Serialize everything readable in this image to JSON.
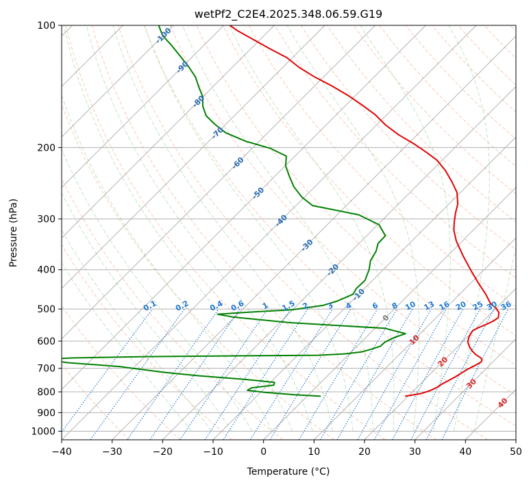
{
  "chart_data": {
    "type": "line",
    "subtype": "skew-t",
    "title": "wetPf2_C2E4.2025.348.06.59.G19",
    "xlabel": "Temperature (°C)",
    "ylabel": "Pressure (hPa)",
    "xlim": [
      -40,
      50
    ],
    "ylim": [
      1050,
      100
    ],
    "y_scale": "log",
    "x_ticks": [
      -40,
      -30,
      -20,
      -10,
      0,
      10,
      20,
      30,
      40,
      50
    ],
    "x_tick_labels": [
      "−40",
      "−30",
      "−20",
      "−10",
      "0",
      "10",
      "20",
      "30",
      "40",
      "50"
    ],
    "y_ticks": [
      100,
      200,
      300,
      400,
      500,
      600,
      700,
      800,
      900,
      1000
    ],
    "y_tick_labels": [
      "100",
      "200",
      "300",
      "400",
      "500",
      "600",
      "700",
      "800",
      "900",
      "1000"
    ],
    "grid": true,
    "colors": {
      "temperature": "#e00000",
      "dewpoint": "#008000",
      "isotherm": "#a9a9a9",
      "dry_adiabat": "#f4a582",
      "moist_adiabat": "#a6d8a6",
      "mixing_ratio": "#1f77d0",
      "freezing": "#d2b48c"
    },
    "series": [
      {
        "name": "Temperature",
        "color": "#e00000",
        "points": [
          [
            19.4,
            820
          ],
          [
            22,
            808
          ],
          [
            23.2,
            795
          ],
          [
            24,
            780
          ],
          [
            24.3,
            765
          ],
          [
            25,
            748
          ],
          [
            25.6,
            733
          ],
          [
            26,
            718
          ],
          [
            26.4,
            705
          ],
          [
            27.2,
            688
          ],
          [
            27.7,
            675
          ],
          [
            27.4,
            666
          ],
          [
            26.6,
            658
          ],
          [
            25.2,
            648
          ],
          [
            23.8,
            635
          ],
          [
            22.4,
            620
          ],
          [
            21.1,
            603
          ],
          [
            20.4,
            588
          ],
          [
            20,
            575
          ],
          [
            19.8,
            565
          ],
          [
            20.4,
            555
          ],
          [
            21.3,
            545
          ],
          [
            22,
            535
          ],
          [
            22.3,
            525
          ],
          [
            21.4,
            510
          ],
          [
            19.9,
            497
          ],
          [
            18,
            485
          ],
          [
            15.2,
            460
          ],
          [
            11.3,
            430
          ],
          [
            7.3,
            400
          ],
          [
            3.1,
            370
          ],
          [
            -1.2,
            340
          ],
          [
            -3.8,
            320
          ],
          [
            -5.4,
            305
          ],
          [
            -6.9,
            290
          ],
          [
            -8.3,
            275
          ],
          [
            -10.7,
            258
          ],
          [
            -13.8,
            243
          ],
          [
            -17.3,
            228
          ],
          [
            -21,
            215
          ],
          [
            -24.5,
            206
          ],
          [
            -28.8,
            196
          ],
          [
            -33.7,
            186
          ],
          [
            -38.2,
            176
          ],
          [
            -42.3,
            166
          ],
          [
            -46.9,
            157
          ],
          [
            -51.4,
            149
          ],
          [
            -56.6,
            141
          ],
          [
            -61.8,
            134
          ],
          [
            -66.7,
            127
          ],
          [
            -71.2,
            120
          ],
          [
            -76.4,
            114
          ],
          [
            -81.7,
            108
          ],
          [
            -86.3,
            103
          ],
          [
            -88.8,
            100
          ]
        ]
      },
      {
        "name": "Dewpoint",
        "color": "#008000",
        "points": [
          [
            2.7,
            820
          ],
          [
            -2.8,
            813
          ],
          [
            -9.2,
            802
          ],
          [
            -13,
            793
          ],
          [
            -12.7,
            782
          ],
          [
            -8.8,
            770
          ],
          [
            -9.2,
            758
          ],
          [
            -15.8,
            745
          ],
          [
            -25.6,
            730
          ],
          [
            -33.1,
            716
          ],
          [
            -40,
            700
          ],
          [
            -43,
            693
          ],
          [
            -54,
            678
          ],
          [
            -60,
            665
          ],
          [
            -54,
            660
          ],
          [
            -40,
            655
          ],
          [
            -20,
            652
          ],
          [
            -6,
            650
          ],
          [
            -1,
            645
          ],
          [
            2,
            638
          ],
          [
            3.4,
            628
          ],
          [
            4.6,
            618
          ],
          [
            4.7,
            603
          ],
          [
            5.6,
            588
          ],
          [
            7.1,
            575
          ],
          [
            2,
            558
          ],
          [
            -18.2,
            540
          ],
          [
            -30.5,
            523
          ],
          [
            -34,
            515
          ],
          [
            -29.3,
            510
          ],
          [
            -20,
            502
          ],
          [
            -14.9,
            490
          ],
          [
            -12.9,
            478
          ],
          [
            -11.1,
            460
          ],
          [
            -11.6,
            445
          ],
          [
            -11.5,
            425
          ],
          [
            -12.8,
            400
          ],
          [
            -14.3,
            380
          ],
          [
            -15.1,
            360
          ],
          [
            -16.2,
            345
          ],
          [
            -16.3,
            330
          ],
          [
            -19.7,
            310
          ],
          [
            -25.7,
            293
          ],
          [
            -36.7,
            278
          ],
          [
            -40.5,
            265
          ],
          [
            -44.1,
            250
          ],
          [
            -47.2,
            235
          ],
          [
            -49.9,
            222
          ],
          [
            -51.7,
            210
          ],
          [
            -56.4,
            201
          ],
          [
            -62.7,
            193
          ],
          [
            -68.3,
            184
          ],
          [
            -72.3,
            175
          ],
          [
            -75.6,
            167
          ],
          [
            -78.2,
            158
          ],
          [
            -80,
            150
          ],
          [
            -82.7,
            142
          ],
          [
            -85.4,
            134
          ],
          [
            -89,
            126
          ],
          [
            -92.6,
            119
          ],
          [
            -96.4,
            112
          ],
          [
            -100.1,
            106
          ],
          [
            -102.9,
            100
          ]
        ]
      }
    ],
    "isotherm_labels": [
      "-100",
      "-90",
      "-80",
      "-70",
      "-60",
      "-50",
      "-40",
      "-30",
      "-20",
      "-10",
      "0",
      "10",
      "20",
      "30",
      "40"
    ],
    "mixing_ratio_labels": [
      "0.1",
      "0.2",
      "0.4",
      "0.6",
      "1",
      "1.5",
      "2",
      "3",
      "4",
      "6",
      "8",
      "10",
      "13",
      "16",
      "20",
      "25",
      "30",
      "36"
    ],
    "mixing_ratio_values": [
      0.1,
      0.2,
      0.4,
      0.6,
      1,
      1.5,
      2,
      3,
      4,
      6,
      8,
      10,
      13,
      16,
      20,
      25,
      30,
      36
    ]
  }
}
